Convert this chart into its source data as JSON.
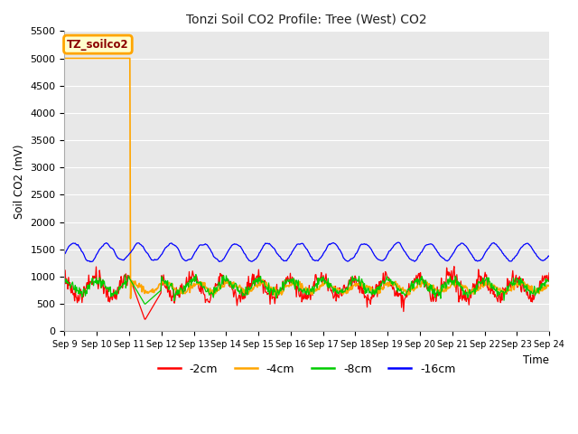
{
  "title": "Tonzi Soil CO2 Profile: Tree (West) CO2",
  "ylabel": "Soil CO2 (mV)",
  "xlabel": "Time",
  "ylim": [
    0,
    5500
  ],
  "yticks": [
    0,
    500,
    1000,
    1500,
    2000,
    2500,
    3000,
    3500,
    4000,
    4500,
    5000,
    5500
  ],
  "bg_color": "#e8e8e8",
  "annotation_text": "TZ_soilco2",
  "annotation_bg": "#ffffcc",
  "annotation_border": "#ffa500",
  "series_colors": {
    "-2cm": "#ff0000",
    "-4cm": "#ffa500",
    "-8cm": "#00cc00",
    "-16cm": "#0000ff"
  },
  "legend_labels": [
    "-2cm",
    "-4cm",
    "-8cm",
    "-16cm"
  ],
  "num_days": 15,
  "start_day": 9,
  "end_day": 24,
  "x_tick_labels": [
    "Sep 9",
    "Sep 10",
    "Sep 11",
    "Sep 12",
    "Sep 13",
    "Sep 14",
    "Sep 15",
    "Sep 16",
    "Sep 17",
    "Sep 18",
    "Sep 19",
    "Sep 20",
    "Sep 21",
    "Sep 22",
    "Sep 23",
    "Sep 24"
  ],
  "figsize": [
    6.4,
    4.8
  ],
  "dpi": 100
}
